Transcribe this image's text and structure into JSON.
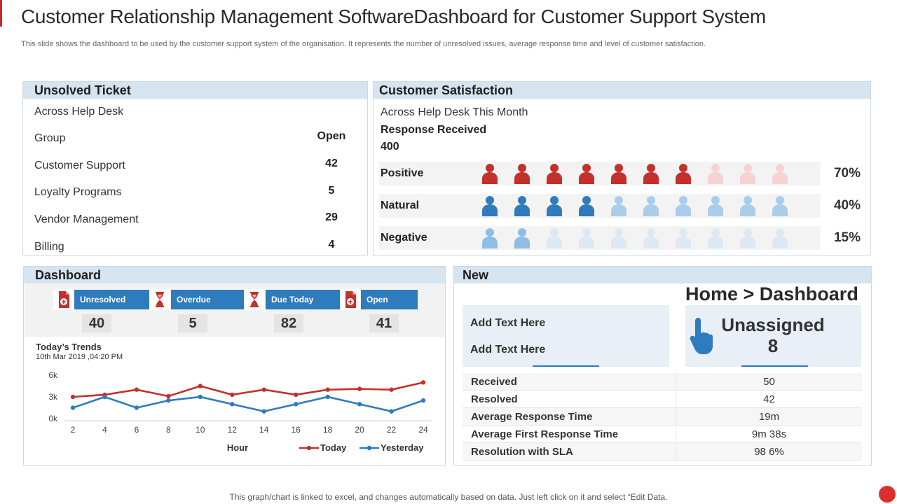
{
  "header": {
    "title": "Customer Relationship Management SoftwareDashboard for Customer Support System",
    "subtitle": "This slide shows the dashboard to be used by the customer support system of the organisation. It represents the number of unresolved issues, average response time and level of customer satisfaction."
  },
  "unsolved": {
    "title": "Unsolved Ticket",
    "subtitle": "Across Help Desk",
    "group_label": "Group",
    "open_label": "Open",
    "rows": [
      {
        "label": "Customer Support",
        "value": "42"
      },
      {
        "label": "Loyalty Programs",
        "value": "5"
      },
      {
        "label": "Vendor Management",
        "value": "29"
      },
      {
        "label": "Billing",
        "value": "4"
      }
    ]
  },
  "satisfaction": {
    "title": "Customer Satisfaction",
    "subtitle": "Across Help Desk This Month",
    "response_label": "Response Received",
    "response_value": "400",
    "rows": [
      {
        "label": "Positive",
        "pct": "70%",
        "filled": 7,
        "total": 10,
        "color_dark": "#c4302b",
        "color_light": "#f6d2d0"
      },
      {
        "label": "Natural",
        "pct": "40%",
        "filled": 4,
        "total": 10,
        "color_dark": "#2e7bbd",
        "color_light": "#a9cdea"
      },
      {
        "label": "Negative",
        "pct": "15%",
        "filled": 2,
        "total": 10,
        "color_dark": "#8fbde3",
        "color_light": "#dce9f5"
      }
    ]
  },
  "dashboard": {
    "title": "Dashboard",
    "kpis": [
      {
        "label": "Unresolved",
        "value": "40",
        "icon": "file-plus-icon"
      },
      {
        "label": "Overdue",
        "value": "5",
        "icon": "hourglass-icon"
      },
      {
        "label": "Due Today",
        "value": "82",
        "icon": "hourglass-icon"
      },
      {
        "label": "Open",
        "value": "41",
        "icon": "file-plus-icon"
      }
    ],
    "trends_title": "Today’s Trends",
    "trends_date": "10th Mar 2019 ,04:20 PM"
  },
  "chart_data": {
    "type": "line",
    "x": [
      2,
      4,
      6,
      8,
      10,
      12,
      14,
      16,
      18,
      20,
      22,
      24
    ],
    "xlabel": "Hour",
    "ylabel": "",
    "ylim": [
      0,
      6000
    ],
    "yticks": [
      "0k",
      "3k",
      "6k"
    ],
    "series": [
      {
        "name": "Today",
        "color": "#c4302b",
        "values": [
          3000,
          3300,
          4000,
          3100,
          4500,
          3300,
          4000,
          3300,
          4000,
          4100,
          4000,
          5000
        ]
      },
      {
        "name": "Yesterday",
        "color": "#2e7bbd",
        "values": [
          1500,
          3000,
          1500,
          2500,
          3000,
          2000,
          1000,
          2000,
          3000,
          2000,
          1000,
          2500
        ]
      }
    ],
    "grid": false,
    "legend": "bottom-right"
  },
  "new_panel": {
    "title": "New",
    "add_text_1": "Add Text Here",
    "add_text_2": "Add Text Here",
    "home_dashboard": "Home > Dashboard",
    "unassigned_label": "Unassigned",
    "unassigned_value": "8",
    "stats": [
      {
        "label": "Received",
        "value": "50"
      },
      {
        "label": "Resolved",
        "value": "42"
      },
      {
        "label": "Average Response Time",
        "value": "19m"
      },
      {
        "label": "Average First Response Time",
        "value": "9m 38s"
      },
      {
        "label": "Resolution with SLA",
        "value": "98 6%"
      }
    ]
  },
  "footer": {
    "text": "This graph/chart is linked to excel, and changes automatically based on data. Just left click on it and select “Edit Data."
  }
}
